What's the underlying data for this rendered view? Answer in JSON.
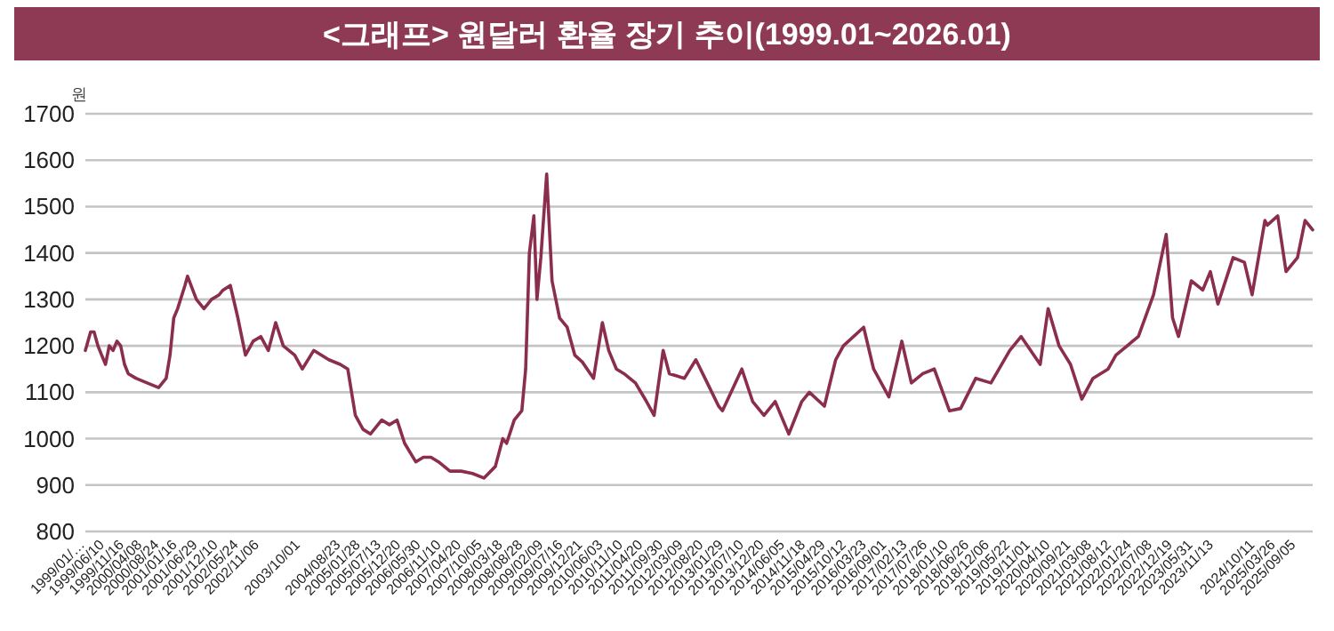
{
  "chart_data": {
    "type": "line",
    "title": "<그래프> 원달러 환율 장기 추이(1999.01~2026.01)",
    "ylabel": "원",
    "grid": "y",
    "ylim": [
      800,
      1700
    ],
    "yticks": [
      800,
      900,
      1000,
      1100,
      1200,
      1300,
      1400,
      1500,
      1600,
      1700
    ],
    "xlim": [
      "1999-01-04",
      "2026-01-15"
    ],
    "xticks": [
      {
        "value": "1999-01-04",
        "label": "1999/01/…"
      },
      {
        "value": "1999-06-10",
        "label": "1999/06/10"
      },
      {
        "value": "1999-11-16",
        "label": "1999/11/16"
      },
      {
        "value": "2000-04-08",
        "label": "2000/04/08"
      },
      {
        "value": "2000-08-24",
        "label": "2000/08/24"
      },
      {
        "value": "2001-01-16",
        "label": "2001/01/16"
      },
      {
        "value": "2001-06-29",
        "label": "2001/06/29"
      },
      {
        "value": "2001-12-10",
        "label": "2001/12/10"
      },
      {
        "value": "2002-05-24",
        "label": "2002/05/24"
      },
      {
        "value": "2002-11-06",
        "label": "2002/11/06"
      },
      {
        "value": "2003-10-01",
        "label": "2003/10/01"
      },
      {
        "value": "2004-08-23",
        "label": "2004/08/23"
      },
      {
        "value": "2005-01-28",
        "label": "2005/01/28"
      },
      {
        "value": "2005-07-13",
        "label": "2005/07/13"
      },
      {
        "value": "2005-12-20",
        "label": "2005/12/20"
      },
      {
        "value": "2006-05-30",
        "label": "2006/05/30"
      },
      {
        "value": "2006-11-10",
        "label": "2006/11/10"
      },
      {
        "value": "2007-04-20",
        "label": "2007/04/20"
      },
      {
        "value": "2007-10-05",
        "label": "2007/10/05"
      },
      {
        "value": "2008-03-18",
        "label": "2008/03/18"
      },
      {
        "value": "2008-08-28",
        "label": "2008/08/28"
      },
      {
        "value": "2009-02-09",
        "label": "2009/02/09"
      },
      {
        "value": "2009-07-16",
        "label": "2009/07/16"
      },
      {
        "value": "2009-12-21",
        "label": "2009/12/21"
      },
      {
        "value": "2010-06-03",
        "label": "2010/06/03"
      },
      {
        "value": "2010-11-10",
        "label": "2010/11/10"
      },
      {
        "value": "2011-04-20",
        "label": "2011/04/20"
      },
      {
        "value": "2011-09-30",
        "label": "2011/09/30"
      },
      {
        "value": "2012-03-09",
        "label": "2012/03/09"
      },
      {
        "value": "2012-08-20",
        "label": "2012/08/20"
      },
      {
        "value": "2013-01-29",
        "label": "2013/01/29"
      },
      {
        "value": "2013-07-10",
        "label": "2013/07/10"
      },
      {
        "value": "2013-12-20",
        "label": "2013/12/20"
      },
      {
        "value": "2014-06-05",
        "label": "2014/06/05"
      },
      {
        "value": "2014-11-18",
        "label": "2014/11/18"
      },
      {
        "value": "2015-04-29",
        "label": "2015/04/29"
      },
      {
        "value": "2015-10-12",
        "label": "2015/10/12"
      },
      {
        "value": "2016-03-23",
        "label": "2016/03/23"
      },
      {
        "value": "2016-09-01",
        "label": "2016/09/01"
      },
      {
        "value": "2017-02-13",
        "label": "2017/02/13"
      },
      {
        "value": "2017-07-26",
        "label": "2017/07/26"
      },
      {
        "value": "2018-01-10",
        "label": "2018/01/10"
      },
      {
        "value": "2018-06-26",
        "label": "2018/06/26"
      },
      {
        "value": "2018-12-06",
        "label": "2018/12/06"
      },
      {
        "value": "2019-05-22",
        "label": "2019/05/22"
      },
      {
        "value": "2019-11-01",
        "label": "2019/11/01"
      },
      {
        "value": "2020-04-10",
        "label": "2020/04/10"
      },
      {
        "value": "2020-09-21",
        "label": "2020/09/21"
      },
      {
        "value": "2021-03-08",
        "label": "2021/03/08"
      },
      {
        "value": "2021-08-12",
        "label": "2021/08/12"
      },
      {
        "value": "2022-01-24",
        "label": "2022/01/24"
      },
      {
        "value": "2022-07-08",
        "label": "2022/07/08"
      },
      {
        "value": "2022-12-19",
        "label": "2022/12/19"
      },
      {
        "value": "2023-05-31",
        "label": "2023/05/31"
      },
      {
        "value": "2023-11-13",
        "label": "2023/11/13"
      },
      {
        "value": "2024-10-11",
        "label": "2024/10/11"
      },
      {
        "value": "2025-03-26",
        "label": "2025/03/26"
      },
      {
        "value": "2025-09-05",
        "label": "2025/09/05"
      }
    ],
    "series": [
      {
        "color": "#8b2e4e",
        "x": [
          "1999-01-04",
          "1999-02-15",
          "1999-03-15",
          "1999-04-15",
          "1999-05-15",
          "1999-06-15",
          "1999-07-15",
          "1999-08-15",
          "1999-09-15",
          "1999-10-15",
          "1999-11-15",
          "1999-12-15",
          "2000-02-15",
          "2000-05-15",
          "2000-08-15",
          "2000-10-15",
          "2000-11-15",
          "2000-12-15",
          "2001-01-15",
          "2001-03-15",
          "2001-04-05",
          "2001-06-15",
          "2001-08-15",
          "2001-10-15",
          "2001-12-15",
          "2002-01-15",
          "2002-03-15",
          "2002-05-15",
          "2002-07-15",
          "2002-09-15",
          "2002-11-15",
          "2003-01-15",
          "2003-03-15",
          "2003-05-15",
          "2003-08-15",
          "2003-10-15",
          "2004-01-15",
          "2004-05-15",
          "2004-08-15",
          "2004-10-15",
          "2004-12-15",
          "2005-02-15",
          "2005-04-15",
          "2005-07-15",
          "2005-09-15",
          "2005-11-15",
          "2006-01-15",
          "2006-04-15",
          "2006-06-15",
          "2006-08-15",
          "2006-10-15",
          "2007-01-15",
          "2007-04-15",
          "2007-07-15",
          "2007-10-15",
          "2008-01-15",
          "2008-03-15",
          "2008-04-15",
          "2008-06-15",
          "2008-08-15",
          "2008-09-15",
          "2008-10-15",
          "2008-11-20",
          "2008-12-15",
          "2009-01-15",
          "2009-03-03",
          "2009-04-15",
          "2009-06-15",
          "2009-08-15",
          "2009-10-15",
          "2009-12-15",
          "2010-03-15",
          "2010-05-25",
          "2010-07-15",
          "2010-09-15",
          "2010-11-15",
          "2011-02-15",
          "2011-05-15",
          "2011-07-15",
          "2011-09-26",
          "2011-11-15",
          "2012-03-15",
          "2012-06-15",
          "2012-09-15",
          "2012-12-15",
          "2013-01-15",
          "2013-06-20",
          "2013-09-15",
          "2013-12-15",
          "2014-03-15",
          "2014-07-03",
          "2014-10-15",
          "2014-12-15",
          "2015-04-15",
          "2015-07-15",
          "2015-09-15",
          "2016-02-25",
          "2016-05-15",
          "2016-09-15",
          "2016-12-28",
          "2017-03-15",
          "2017-06-15",
          "2017-09-15",
          "2018-01-15",
          "2018-04-15",
          "2018-08-15",
          "2018-12-15",
          "2019-05-15",
          "2019-08-15",
          "2020-01-15",
          "2020-03-19",
          "2020-06-15",
          "2020-09-15",
          "2020-12-15",
          "2021-03-15",
          "2021-07-15",
          "2021-09-15",
          "2022-03-15",
          "2022-07-15",
          "2022-10-25",
          "2022-12-15",
          "2023-02-01",
          "2023-05-15",
          "2023-08-15",
          "2023-10-15",
          "2023-12-15",
          "2024-04-15",
          "2024-07-15",
          "2024-09-15",
          "2024-12-27",
          "2025-01-15",
          "2025-04-09",
          "2025-06-15",
          "2025-09-15",
          "2025-11-15",
          "2026-01-15"
        ],
        "values": [
          1190,
          1230,
          1230,
          1200,
          1180,
          1160,
          1200,
          1190,
          1210,
          1200,
          1160,
          1140,
          1130,
          1120,
          1110,
          1130,
          1180,
          1260,
          1280,
          1330,
          1350,
          1300,
          1280,
          1300,
          1310,
          1320,
          1330,
          1260,
          1180,
          1210,
          1220,
          1190,
          1250,
          1200,
          1180,
          1150,
          1190,
          1170,
          1160,
          1150,
          1050,
          1020,
          1010,
          1040,
          1030,
          1040,
          990,
          950,
          960,
          960,
          950,
          930,
          930,
          925,
          915,
          940,
          1000,
          990,
          1040,
          1060,
          1150,
          1400,
          1480,
          1300,
          1390,
          1570,
          1340,
          1260,
          1240,
          1180,
          1165,
          1130,
          1250,
          1190,
          1150,
          1140,
          1120,
          1080,
          1050,
          1190,
          1140,
          1130,
          1170,
          1120,
          1070,
          1060,
          1150,
          1080,
          1050,
          1080,
          1010,
          1080,
          1100,
          1070,
          1170,
          1200,
          1240,
          1150,
          1090,
          1210,
          1120,
          1140,
          1150,
          1060,
          1065,
          1130,
          1120,
          1190,
          1220,
          1160,
          1280,
          1200,
          1160,
          1085,
          1130,
          1150,
          1180,
          1220,
          1310,
          1440,
          1260,
          1220,
          1340,
          1320,
          1360,
          1290,
          1390,
          1380,
          1310,
          1470,
          1460,
          1480,
          1360,
          1390,
          1470,
          1450
        ]
      }
    ]
  }
}
